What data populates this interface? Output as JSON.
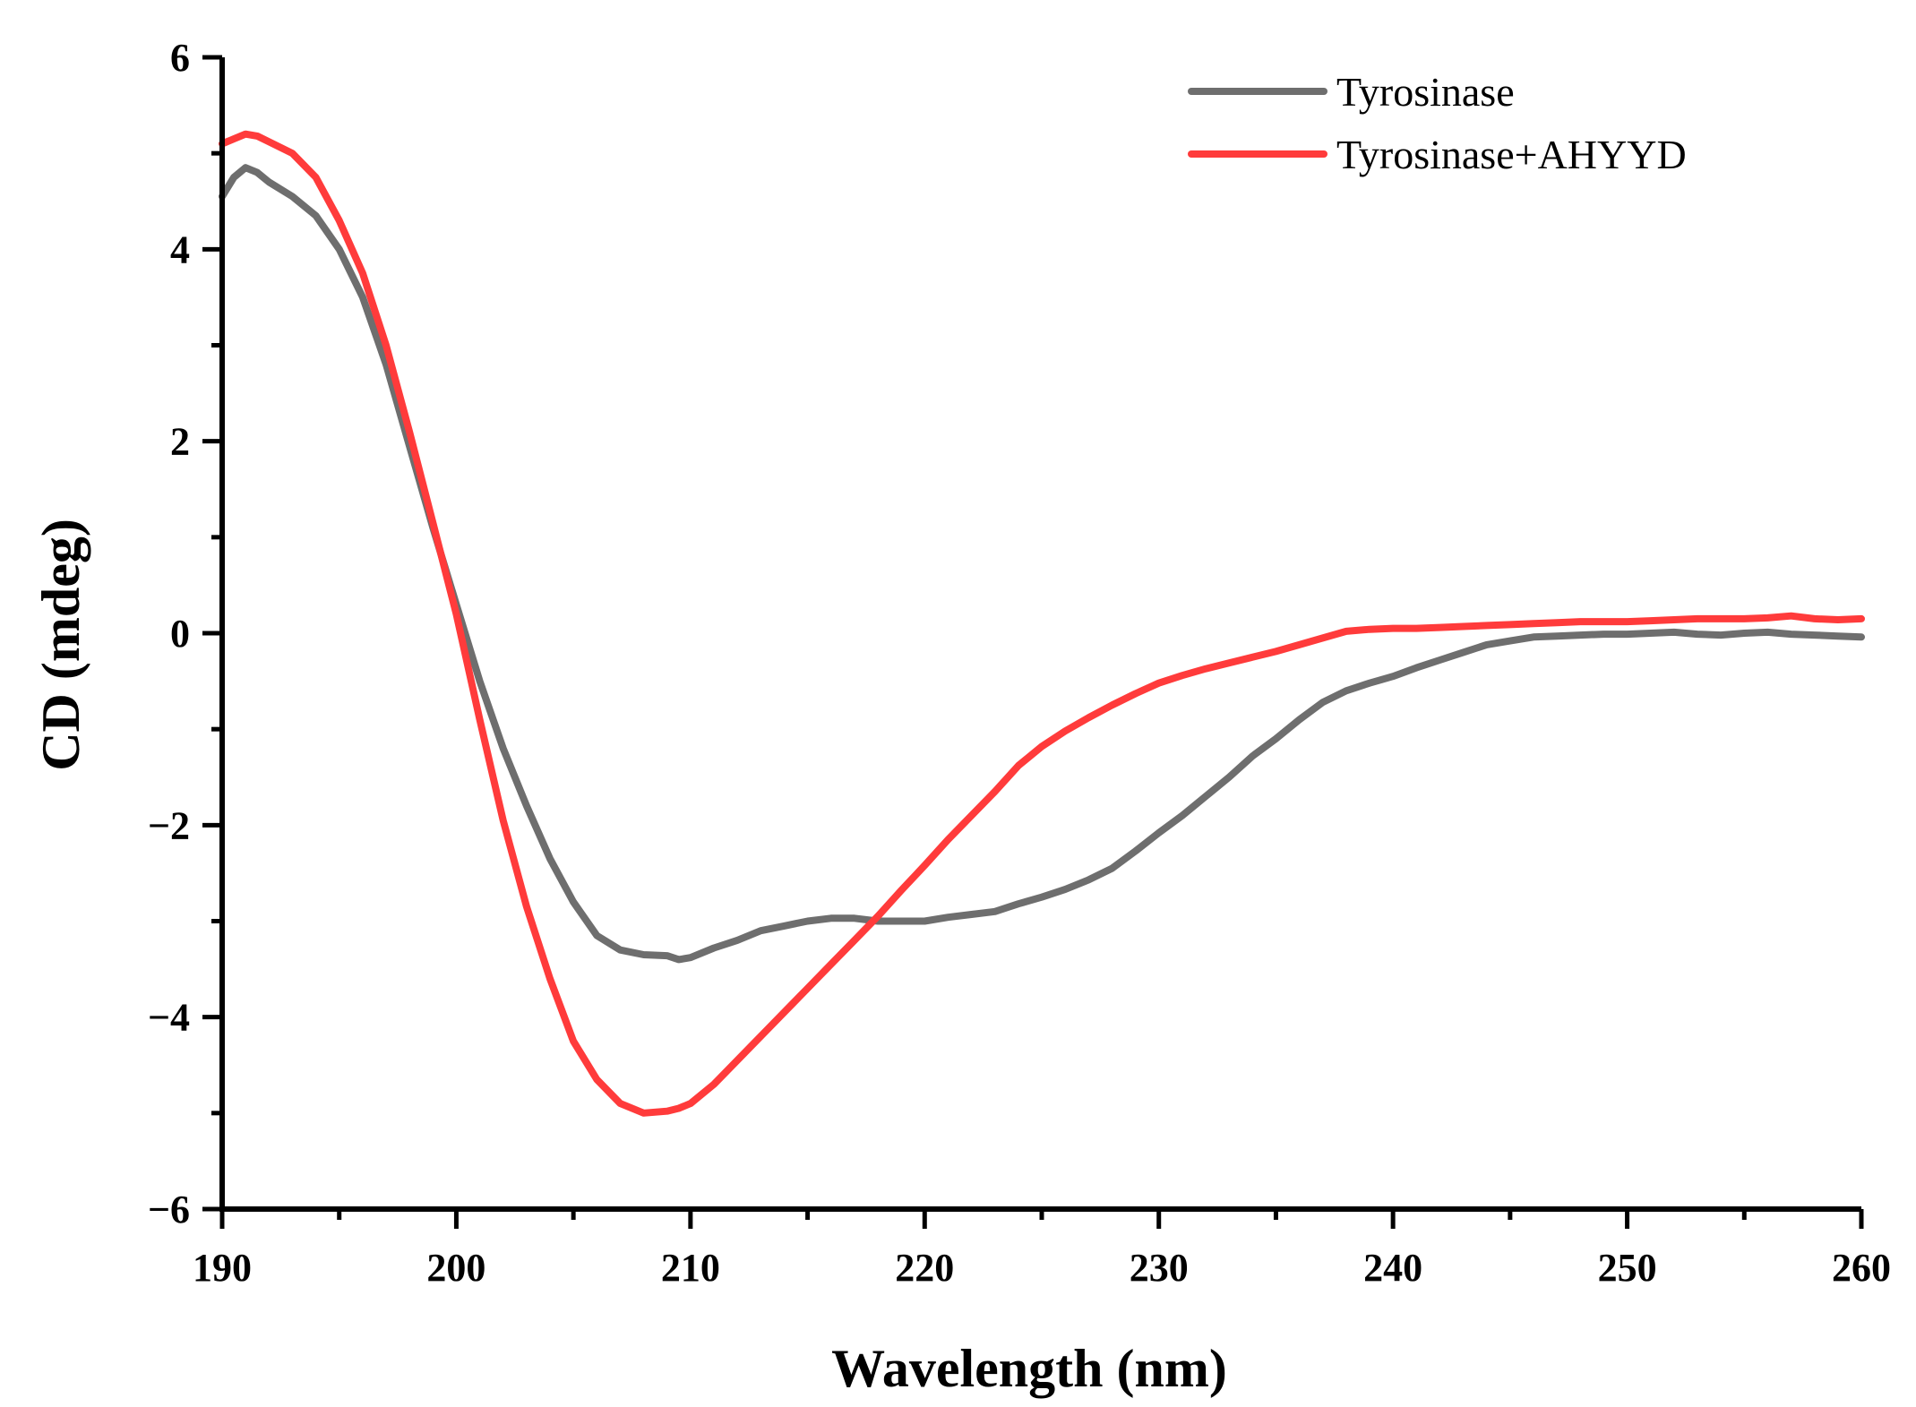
{
  "chart_data": {
    "type": "line",
    "title": "",
    "xlabel": "Wavelength (nm)",
    "ylabel": "CD (mdeg)",
    "xlim": [
      190,
      260
    ],
    "ylim": [
      -6,
      6
    ],
    "x_ticks": [
      190,
      200,
      210,
      220,
      230,
      240,
      250,
      260
    ],
    "x_tick_labels": [
      "190",
      "200",
      "210",
      "220",
      "230",
      "240",
      "250",
      "260"
    ],
    "y_ticks": [
      -6,
      -4,
      -2,
      0,
      2,
      4,
      6
    ],
    "y_tick_labels": [
      "−6",
      "−4",
      "−2",
      "0",
      "2",
      "4",
      "6"
    ],
    "grid": false,
    "legend_position": "top-right",
    "series": [
      {
        "name": "Tyrosinase",
        "color": "#6e6e6e",
        "x": [
          190,
          190.5,
          191,
          191.5,
          192,
          193,
          194,
          195,
          196,
          197,
          198,
          199,
          200,
          201,
          202,
          203,
          204,
          205,
          206,
          207,
          208,
          209,
          209.5,
          210,
          211,
          212,
          213,
          214,
          215,
          216,
          217,
          218,
          219,
          220,
          221,
          222,
          223,
          224,
          225,
          226,
          227,
          228,
          229,
          230,
          231,
          232,
          233,
          234,
          235,
          236,
          237,
          238,
          239,
          240,
          241,
          242,
          243,
          244,
          245,
          246,
          247,
          248,
          249,
          250,
          251,
          252,
          253,
          254,
          255,
          256,
          257,
          258,
          259,
          260
        ],
        "y": [
          4.55,
          4.75,
          4.85,
          4.8,
          4.7,
          4.55,
          4.35,
          4.0,
          3.5,
          2.8,
          1.95,
          1.1,
          0.3,
          -0.5,
          -1.2,
          -1.8,
          -2.35,
          -2.8,
          -3.15,
          -3.3,
          -3.35,
          -3.36,
          -3.4,
          -3.38,
          -3.28,
          -3.2,
          -3.1,
          -3.05,
          -3.0,
          -2.97,
          -2.97,
          -3.0,
          -3.0,
          -3.0,
          -2.96,
          -2.93,
          -2.9,
          -2.82,
          -2.75,
          -2.67,
          -2.57,
          -2.45,
          -2.27,
          -2.08,
          -1.9,
          -1.7,
          -1.5,
          -1.28,
          -1.1,
          -0.9,
          -0.72,
          -0.6,
          -0.52,
          -0.45,
          -0.36,
          -0.28,
          -0.2,
          -0.12,
          -0.08,
          -0.04,
          -0.03,
          -0.02,
          -0.01,
          -0.01,
          0.0,
          0.01,
          -0.01,
          -0.02,
          0.0,
          0.01,
          -0.01,
          -0.02,
          -0.03,
          -0.04
        ]
      },
      {
        "name": "Tyrosinase+AHYYD",
        "color": "#ff3b3b",
        "x": [
          190,
          190.5,
          191,
          191.5,
          192,
          193,
          194,
          195,
          196,
          197,
          198,
          199,
          200,
          201,
          202,
          203,
          204,
          205,
          206,
          207,
          208,
          209,
          209.5,
          210,
          211,
          212,
          213,
          214,
          215,
          216,
          217,
          218,
          219,
          220,
          221,
          222,
          223,
          224,
          225,
          226,
          227,
          228,
          229,
          230,
          231,
          232,
          233,
          234,
          235,
          236,
          237,
          238,
          239,
          240,
          241,
          242,
          243,
          244,
          245,
          246,
          247,
          248,
          249,
          250,
          251,
          252,
          253,
          254,
          255,
          256,
          257,
          258,
          259,
          260
        ],
        "y": [
          5.1,
          5.15,
          5.2,
          5.18,
          5.12,
          5.0,
          4.75,
          4.3,
          3.75,
          3.0,
          2.1,
          1.15,
          0.2,
          -0.9,
          -1.95,
          -2.85,
          -3.6,
          -4.25,
          -4.65,
          -4.9,
          -5.0,
          -4.98,
          -4.95,
          -4.9,
          -4.7,
          -4.45,
          -4.2,
          -3.95,
          -3.7,
          -3.45,
          -3.2,
          -2.95,
          -2.68,
          -2.42,
          -2.15,
          -1.9,
          -1.65,
          -1.38,
          -1.18,
          -1.02,
          -0.88,
          -0.75,
          -0.63,
          -0.52,
          -0.44,
          -0.37,
          -0.31,
          -0.25,
          -0.19,
          -0.12,
          -0.05,
          0.02,
          0.04,
          0.05,
          0.05,
          0.06,
          0.07,
          0.08,
          0.09,
          0.1,
          0.11,
          0.12,
          0.12,
          0.12,
          0.13,
          0.14,
          0.15,
          0.15,
          0.15,
          0.16,
          0.18,
          0.15,
          0.14,
          0.15
        ]
      }
    ]
  }
}
